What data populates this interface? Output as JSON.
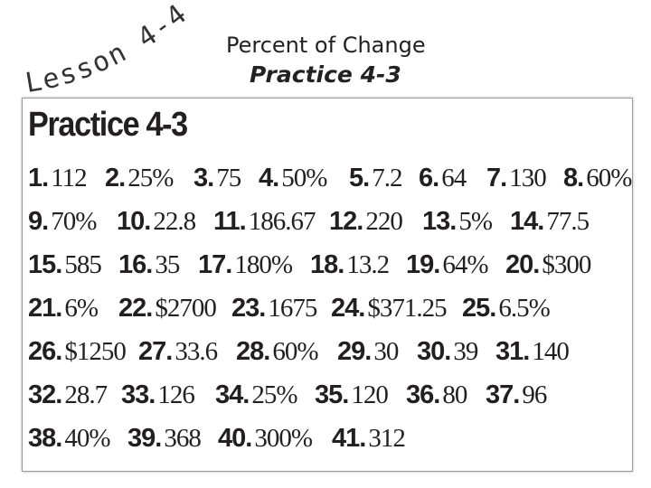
{
  "header": {
    "lesson": "Lesson 4-4",
    "title": "Percent of Change",
    "subtitle": "Practice 4-3"
  },
  "practice": {
    "heading": "Practice 4-3",
    "rows": [
      [
        {
          "number": "1.",
          "answer": "112"
        },
        {
          "number": "2.",
          "answer": "25%"
        },
        {
          "number": "3.",
          "answer": "75"
        },
        {
          "number": "4.",
          "answer": "50%"
        },
        {
          "number": "5.",
          "answer": "7.2"
        },
        {
          "number": "6.",
          "answer": "64"
        },
        {
          "number": "7.",
          "answer": "130"
        },
        {
          "number": "8.",
          "answer": "60%"
        }
      ],
      [
        {
          "number": "9.",
          "answer": "70%"
        },
        {
          "number": "10.",
          "answer": "22.8"
        },
        {
          "number": "11.",
          "answer": "186.67"
        },
        {
          "number": "12.",
          "answer": "220"
        },
        {
          "number": "13.",
          "answer": "5%"
        },
        {
          "number": "14.",
          "answer": "77.5"
        }
      ],
      [
        {
          "number": "15.",
          "answer": "585"
        },
        {
          "number": "16.",
          "answer": "35"
        },
        {
          "number": "17.",
          "answer": "180%"
        },
        {
          "number": "18.",
          "answer": "13.2"
        },
        {
          "number": "19.",
          "answer": "64%"
        },
        {
          "number": "20.",
          "answer": "$300"
        }
      ],
      [
        {
          "number": "21.",
          "answer": "6%"
        },
        {
          "number": "22.",
          "answer": "$2700"
        },
        {
          "number": "23.",
          "answer": "1675"
        },
        {
          "number": "24.",
          "answer": "$371.25"
        },
        {
          "number": "25.",
          "answer": "6.5%"
        }
      ],
      [
        {
          "number": "26.",
          "answer": "$1250"
        },
        {
          "number": "27.",
          "answer": "33.6"
        },
        {
          "number": "28.",
          "answer": "60%"
        },
        {
          "number": "29.",
          "answer": "30"
        },
        {
          "number": "30.",
          "answer": "39"
        },
        {
          "number": "31.",
          "answer": "140"
        }
      ],
      [
        {
          "number": "32.",
          "answer": "28.7"
        },
        {
          "number": "33.",
          "answer": "126"
        },
        {
          "number": "34.",
          "answer": "25%"
        },
        {
          "number": "35.",
          "answer": "120"
        },
        {
          "number": "36.",
          "answer": "80"
        },
        {
          "number": "37.",
          "answer": "96"
        }
      ],
      [
        {
          "number": "38.",
          "answer": "40%"
        },
        {
          "number": "39.",
          "answer": "368"
        },
        {
          "number": "40.",
          "answer": "300%"
        },
        {
          "number": "41.",
          "answer": "312"
        }
      ]
    ]
  }
}
